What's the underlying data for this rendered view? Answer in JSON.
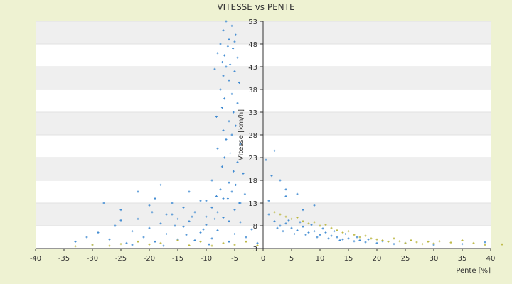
{
  "chart_data": {
    "type": "scatter",
    "title": "VITESSE vs PENTE",
    "xlabel": "Pente [%]",
    "ylabel": "Vitesse [km/h]",
    "xlim": [
      -40,
      40
    ],
    "ylim": [
      3,
      53
    ],
    "x_ticks": [
      -40,
      -35,
      -30,
      -25,
      -20,
      -15,
      -10,
      -5,
      0,
      5,
      10,
      15,
      20,
      25,
      30,
      35,
      40
    ],
    "y_ticks": [
      3,
      8,
      13,
      18,
      23,
      28,
      33,
      38,
      43,
      48,
      53
    ],
    "grid": true,
    "legend": "none",
    "colors": {
      "background": "#eef2d2",
      "plot": "#ffffff",
      "band": "#efefef",
      "series1": "#3a87d0",
      "series2": "#b9b43a",
      "axis": "#333333"
    },
    "series": [
      {
        "color": "#3a87d0",
        "points": [
          [
            -6.5,
            53
          ],
          [
            -5.5,
            52
          ],
          [
            -7,
            51
          ],
          [
            -4.8,
            50
          ],
          [
            -6,
            49
          ],
          [
            -5,
            48.5
          ],
          [
            -7.5,
            48
          ],
          [
            -6.2,
            47.5
          ],
          [
            -5.3,
            47
          ],
          [
            -8,
            46
          ],
          [
            -6.8,
            45.5
          ],
          [
            -4.5,
            45
          ],
          [
            -7.2,
            44
          ],
          [
            -5.8,
            43.5
          ],
          [
            -6.5,
            43
          ],
          [
            -8.5,
            42.5
          ],
          [
            -5,
            42
          ],
          [
            -7,
            41
          ],
          [
            -6,
            40
          ],
          [
            -4.2,
            39.5
          ],
          [
            -7.5,
            38
          ],
          [
            -5.5,
            37
          ],
          [
            -6.8,
            36
          ],
          [
            -4.5,
            35
          ],
          [
            -7.2,
            34
          ],
          [
            -5.2,
            33
          ],
          [
            -8.2,
            32
          ],
          [
            -6,
            31
          ],
          [
            -4.8,
            30
          ],
          [
            -7,
            29
          ],
          [
            -5.5,
            28
          ],
          [
            -6.5,
            27
          ],
          [
            -4,
            26
          ],
          [
            -8,
            25
          ],
          [
            -5.8,
            24
          ],
          [
            -6.8,
            23
          ],
          [
            -4.5,
            22
          ],
          [
            -7.2,
            21
          ],
          [
            -5.2,
            20
          ],
          [
            -3.5,
            19.5
          ],
          [
            -9,
            18
          ],
          [
            -6,
            17.5
          ],
          [
            -4.8,
            17
          ],
          [
            -7.5,
            16
          ],
          [
            -5.5,
            15.5
          ],
          [
            -3.2,
            15
          ],
          [
            -8.2,
            14.5
          ],
          [
            -6.2,
            14
          ],
          [
            -10,
            13.5
          ],
          [
            -4.2,
            13
          ],
          [
            -28,
            13
          ],
          [
            -25,
            11.5
          ],
          [
            -22,
            15.5
          ],
          [
            -20,
            12.5
          ],
          [
            -18,
            17
          ],
          [
            -19,
            14
          ],
          [
            -16,
            13
          ],
          [
            -17,
            10.5
          ],
          [
            -14,
            12
          ],
          [
            -13,
            15.5
          ],
          [
            -15,
            9.5
          ],
          [
            -12,
            11
          ],
          [
            -11,
            13.5
          ],
          [
            -10,
            10
          ],
          [
            -9,
            12
          ],
          [
            -8,
            11
          ],
          [
            -7,
            14
          ],
          [
            -6,
            9
          ],
          [
            -5,
            11.5
          ],
          [
            -4,
            13
          ],
          [
            -33,
            4.5
          ],
          [
            -31,
            5.5
          ],
          [
            -30,
            3.8
          ],
          [
            -29,
            6.5
          ],
          [
            -27,
            5
          ],
          [
            -26,
            8
          ],
          [
            -24,
            4.2
          ],
          [
            -23,
            6.8
          ],
          [
            -22,
            9.5
          ],
          [
            -21,
            5.5
          ],
          [
            -20,
            7.5
          ],
          [
            -19,
            4.5
          ],
          [
            -18,
            8.5
          ],
          [
            -17,
            6.2
          ],
          [
            -16,
            10.5
          ],
          [
            -15,
            5
          ],
          [
            -14,
            7.8
          ],
          [
            -13,
            9
          ],
          [
            -12,
            4.8
          ],
          [
            -11,
            6.5
          ],
          [
            -10,
            8.2
          ],
          [
            -9,
            5.2
          ],
          [
            -8,
            7
          ],
          [
            -7,
            9.8
          ],
          [
            -6,
            4.5
          ],
          [
            -5,
            6.2
          ],
          [
            -4,
            8.8
          ],
          [
            -3,
            5.5
          ],
          [
            -2,
            7.2
          ],
          [
            -1,
            4.2
          ],
          [
            -25,
            9.2
          ],
          [
            -23,
            3.8
          ],
          [
            -19.5,
            11
          ],
          [
            -17.5,
            3.6
          ],
          [
            -15.5,
            8
          ],
          [
            -13.5,
            6
          ],
          [
            -12.5,
            10
          ],
          [
            -10.5,
            7.2
          ],
          [
            -9.5,
            3.9
          ],
          [
            -8.5,
            9.5
          ],
          [
            1,
            10.5
          ],
          [
            2,
            9
          ],
          [
            3,
            8
          ],
          [
            4,
            8.5
          ],
          [
            5,
            7.5
          ],
          [
            6,
            7
          ],
          [
            7,
            7.8
          ],
          [
            8,
            6.5
          ],
          [
            9,
            6.8
          ],
          [
            10,
            6
          ],
          [
            11,
            6.5
          ],
          [
            12,
            5.8
          ],
          [
            13,
            5.5
          ],
          [
            14,
            5
          ],
          [
            15,
            5.2
          ],
          [
            16,
            4.6
          ],
          [
            17,
            4.8
          ],
          [
            18,
            4.4
          ],
          [
            20,
            4.2
          ],
          [
            23,
            4
          ],
          [
            2.5,
            7.5
          ],
          [
            3.5,
            6.8
          ],
          [
            4.5,
            9.2
          ],
          [
            5.5,
            6.2
          ],
          [
            6.5,
            8.8
          ],
          [
            7.5,
            6
          ],
          [
            8.5,
            8.2
          ],
          [
            9.5,
            5.5
          ],
          [
            10.5,
            7.4
          ],
          [
            11.5,
            5.2
          ],
          [
            12.5,
            6.8
          ],
          [
            13.5,
            4.8
          ],
          [
            14.5,
            6.2
          ],
          [
            16.5,
            5.5
          ],
          [
            18.5,
            5
          ],
          [
            21,
            4.6
          ],
          [
            25,
            4.2
          ],
          [
            30,
            3.8
          ],
          [
            35,
            4
          ],
          [
            39,
            4.4
          ],
          [
            2,
            24.5
          ],
          [
            3,
            18
          ],
          [
            4,
            16
          ],
          [
            6,
            15
          ],
          [
            9,
            12.5
          ],
          [
            1,
            13.5
          ],
          [
            0.5,
            22.5
          ],
          [
            1.5,
            19
          ],
          [
            4,
            14.5
          ],
          [
            7,
            11.5
          ]
        ]
      },
      {
        "color": "#b9b43a",
        "points": [
          [
            -33,
            3.5
          ],
          [
            -30,
            3.8
          ],
          [
            -27,
            3.6
          ],
          [
            -25,
            4
          ],
          [
            -22,
            4.5
          ],
          [
            -20,
            3.9
          ],
          [
            -18,
            4.2
          ],
          [
            -15,
            4.8
          ],
          [
            -13,
            3.7
          ],
          [
            -11,
            4.5
          ],
          [
            -9,
            3.6
          ],
          [
            -7,
            4.2
          ],
          [
            -5,
            3.8
          ],
          [
            -3,
            4.5
          ],
          [
            -1,
            3.7
          ],
          [
            2,
            11
          ],
          [
            3,
            10.5
          ],
          [
            4,
            10
          ],
          [
            5,
            9.5
          ],
          [
            6,
            9.8
          ],
          [
            7,
            9
          ],
          [
            8,
            8.5
          ],
          [
            9,
            8.8
          ],
          [
            10,
            8
          ],
          [
            11,
            8.2
          ],
          [
            12,
            7.5
          ],
          [
            13,
            7
          ],
          [
            14,
            6.5
          ],
          [
            15,
            6.8
          ],
          [
            16,
            6
          ],
          [
            17,
            5.5
          ],
          [
            18,
            5.8
          ],
          [
            19,
            5.2
          ],
          [
            20,
            5
          ],
          [
            21,
            4.8
          ],
          [
            22,
            4.5
          ],
          [
            23,
            5.2
          ],
          [
            24,
            4.6
          ],
          [
            25,
            4.2
          ],
          [
            26,
            4.8
          ],
          [
            27,
            4.4
          ],
          [
            28,
            4
          ],
          [
            29,
            4.5
          ],
          [
            30,
            4.1
          ],
          [
            31,
            4.6
          ],
          [
            33,
            4.3
          ],
          [
            35,
            4.8
          ],
          [
            37,
            4.2
          ],
          [
            39,
            3.8
          ],
          [
            42,
            3.9
          ]
        ]
      }
    ]
  }
}
